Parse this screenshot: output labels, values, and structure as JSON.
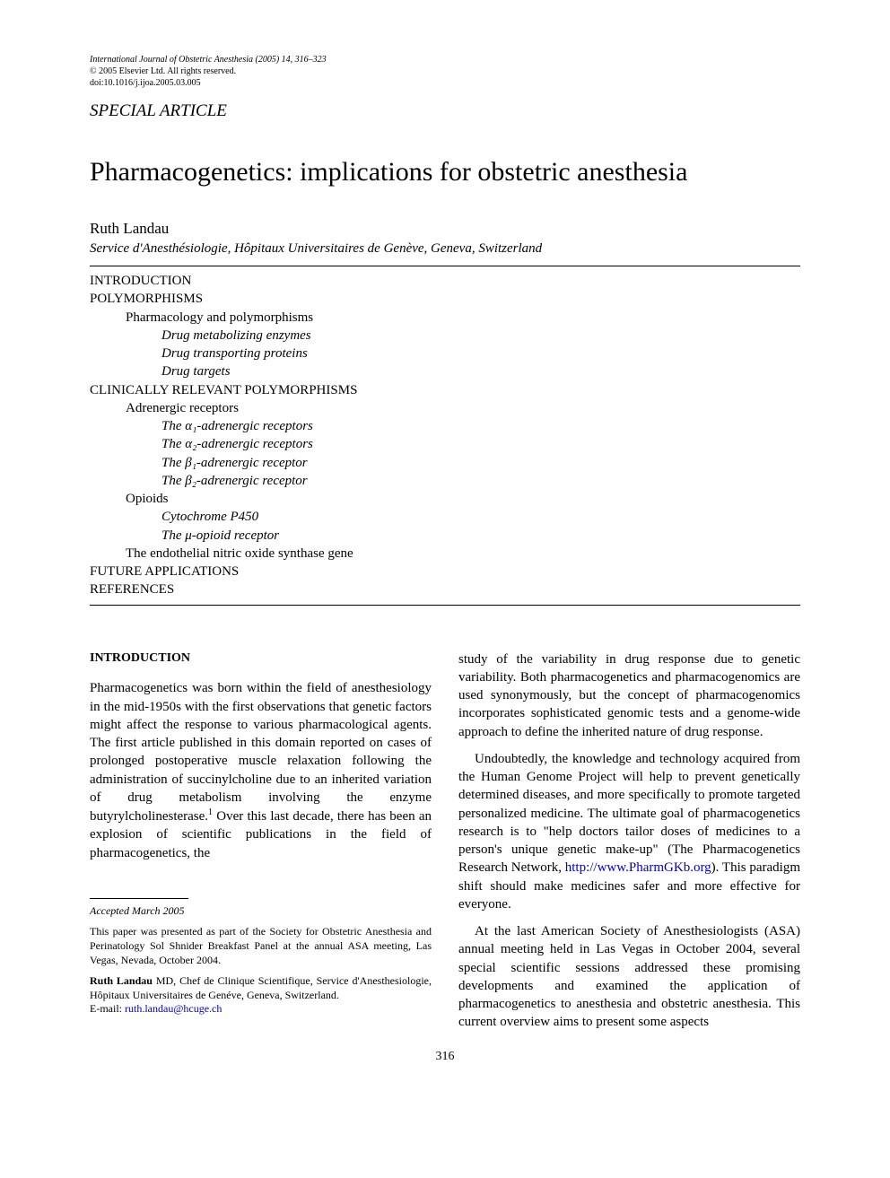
{
  "meta": {
    "journal_line": "International Journal of Obstetric Anesthesia (2005) 14, 316–323",
    "copyright_line": "© 2005 Elsevier Ltd. All rights reserved.",
    "doi_line": "doi:10.1016/j.ijoa.2005.03.005"
  },
  "section_label": "SPECIAL ARTICLE",
  "title": "Pharmacogenetics: implications for obstetric anesthesia",
  "author": "Ruth Landau",
  "affiliation": "Service d'Anesthésiologie, Hôpitaux Universitaires de Genève, Geneva, Switzerland",
  "toc": {
    "items": [
      {
        "lvl": 0,
        "text": "INTRODUCTION"
      },
      {
        "lvl": 0,
        "text": "POLYMORPHISMS"
      },
      {
        "lvl": 1,
        "text": "Pharmacology and polymorphisms"
      },
      {
        "lvl": 2,
        "text": "Drug metabolizing enzymes"
      },
      {
        "lvl": 2,
        "text": "Drug transporting proteins"
      },
      {
        "lvl": 2,
        "text": "Drug targets"
      },
      {
        "lvl": 0,
        "text": "CLINICALLY RELEVANT POLYMORPHISMS"
      },
      {
        "lvl": 1,
        "text": "Adrenergic receptors"
      },
      {
        "lvl": 2,
        "text": "The α₁-adrenergic receptors"
      },
      {
        "lvl": 2,
        "text": "The α₂-adrenergic receptors"
      },
      {
        "lvl": 2,
        "text": "The β₁-adrenergic receptor"
      },
      {
        "lvl": 2,
        "text": "The β₂-adrenergic receptor"
      },
      {
        "lvl": 1,
        "text": "Opioids"
      },
      {
        "lvl": 2,
        "text": "Cytochrome P450"
      },
      {
        "lvl": 2,
        "text": "The μ-opioid receptor"
      },
      {
        "lvl": 1,
        "text": "The endothelial nitric oxide synthase gene"
      },
      {
        "lvl": 0,
        "text": "FUTURE APPLICATIONS"
      },
      {
        "lvl": 0,
        "text": "REFERENCES"
      }
    ]
  },
  "body": {
    "intro_heading": "INTRODUCTION",
    "col1_p1_a": "Pharmacogenetics was born within the field of anesthesiology in the mid-1950s with the first observations that genetic factors might affect the response to various pharmacological agents. The first article published in this domain reported on cases of prolonged postoperative muscle relaxation following the administration of succinylcholine due to an inherited variation of drug metabolism involving the enzyme butyrylcholinesterase.",
    "col1_p1_b": " Over this last decade, there has been an explosion of scientific publications in the field of pharmacogenetics, the",
    "col2_p1": "study of the variability in drug response due to genetic variability. Both pharmacogenetics and pharmacogenomics are used synonymously, but the concept of pharmacogenomics incorporates sophisticated genomic tests and a genome-wide approach to define the inherited nature of drug response.",
    "col2_p2_a": "Undoubtedly, the knowledge and technology acquired from the Human Genome Project will help to prevent genetically determined diseases, and more specifically to promote targeted personalized medicine. The ultimate goal of pharmacogenetics research is to \"help doctors tailor doses of medicines to a person's unique genetic make-up\" (The Pharmacogenetics Research Network, ",
    "col2_p2_link": "http://www.PharmGKb.org",
    "col2_p2_b": "). This paradigm shift should make medicines safer and more effective for everyone.",
    "col2_p3": "At the last American Society of Anesthesiologists (ASA) annual meeting held in Las Vegas in October 2004, several special scientific sessions addressed these promising developments and examined the application of pharmacogenetics to anesthesia and obstetric anesthesia. This current overview aims to present some aspects"
  },
  "footnotes": {
    "accepted": "Accepted March 2005",
    "presented": "This paper was presented as part of the Society for Obstetric Anesthesia and Perinatology Sol Shnider Breakfast Panel at the annual ASA meeting, Las Vegas, Nevada, October 2004.",
    "author_name": "Ruth Landau",
    "author_details": " MD, Chef de Clinique Scientifique, Service d'Anesthesiologie, Hôpitaux Universitaires de Genéve, Geneva, Switzerland.",
    "email_label": "E-mail: ",
    "email": "ruth.landau@hcuge.ch"
  },
  "pagenum": "316"
}
